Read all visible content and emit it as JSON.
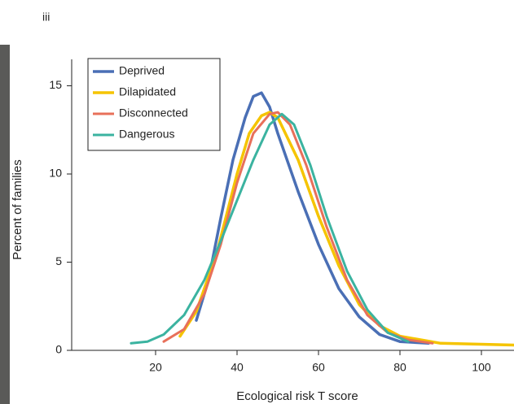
{
  "panel_label": "iii",
  "chart_data": {
    "type": "line",
    "xlabel": "Ecological risk T score",
    "ylabel": "Percent of families",
    "xlim": [
      0,
      108
    ],
    "ylim": [
      0,
      16.5
    ],
    "xticks": [
      20,
      40,
      60,
      80,
      100
    ],
    "yticks": [
      0,
      5,
      10,
      15
    ],
    "legend": "upper left",
    "series": [
      {
        "name": "Deprived",
        "color": "#4a6fb5",
        "width": 3.5,
        "x": [
          30,
          33,
          36,
          39,
          42,
          44,
          46,
          48,
          50,
          55,
          60,
          65,
          70,
          75,
          80,
          87
        ],
        "values": [
          1.7,
          4,
          7.5,
          10.8,
          13.2,
          14.4,
          14.6,
          13.8,
          12.3,
          9,
          6,
          3.5,
          1.9,
          0.9,
          0.5,
          0.4
        ]
      },
      {
        "name": "Dilapidated",
        "color": "#f5c400",
        "width": 3.5,
        "x": [
          26,
          30,
          35,
          40,
          43,
          46,
          48,
          50,
          55,
          60,
          65,
          70,
          75,
          80,
          90,
          108
        ],
        "values": [
          0.8,
          2.2,
          5.5,
          10,
          12.3,
          13.3,
          13.5,
          13.2,
          10.8,
          7.6,
          4.8,
          2.6,
          1.4,
          0.8,
          0.4,
          0.3
        ]
      },
      {
        "name": "Disconnected",
        "color": "#e8705a",
        "width": 3,
        "x": [
          22,
          27,
          32,
          36,
          40,
          44,
          48,
          50,
          53,
          57,
          62,
          67,
          72,
          77,
          82,
          88
        ],
        "values": [
          0.5,
          1.2,
          3.2,
          6,
          9.5,
          12.3,
          13.4,
          13.5,
          12.8,
          10.5,
          7,
          4,
          2,
          1,
          0.6,
          0.4
        ]
      },
      {
        "name": "Dangerous",
        "color": "#3bb3a0",
        "width": 3,
        "x": [
          14,
          18,
          22,
          27,
          32,
          36,
          40,
          44,
          48,
          51,
          54,
          58,
          62,
          67,
          72,
          77,
          82
        ],
        "values": [
          0.4,
          0.5,
          0.9,
          2,
          4,
          6.2,
          8.5,
          10.8,
          12.8,
          13.4,
          12.8,
          10.5,
          7.6,
          4.5,
          2.3,
          1,
          0.5
        ]
      }
    ]
  }
}
